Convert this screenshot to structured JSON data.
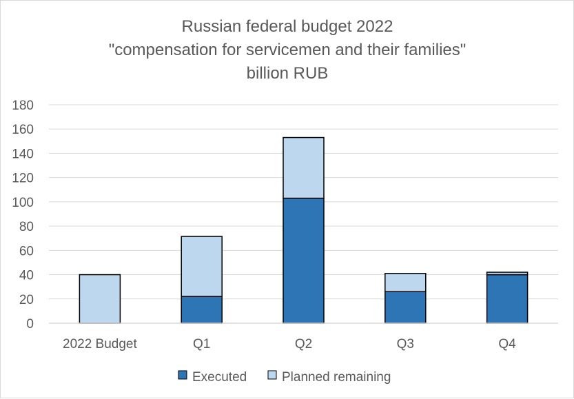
{
  "chart_data": {
    "type": "bar",
    "stacked": true,
    "title_lines": [
      "Russian federal budget 2022",
      "\"compensation for servicemen and their families\"",
      "billion RUB"
    ],
    "categories": [
      "2022 Budget",
      "Q1",
      "Q2",
      "Q3",
      "Q4"
    ],
    "series": [
      {
        "name": "Executed",
        "color": "#2e75b6",
        "values": [
          0,
          22,
          103,
          26,
          40
        ]
      },
      {
        "name": "Planned remaining",
        "color": "#bdd7ee",
        "values": [
          40,
          49.5,
          50,
          15,
          2
        ]
      }
    ],
    "ylim": [
      0,
      180
    ],
    "yticks": [
      0,
      20,
      40,
      60,
      80,
      100,
      120,
      140,
      160,
      180
    ],
    "grid": true,
    "legend_position": "bottom"
  }
}
